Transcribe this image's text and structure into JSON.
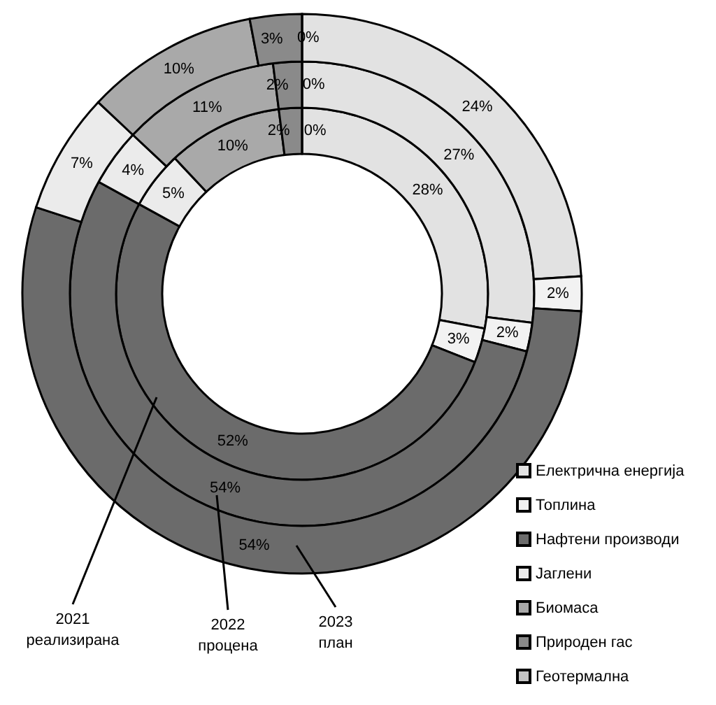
{
  "chart_data": {
    "type": "donut",
    "categories": [
      "Електрична енергија",
      "Топлина",
      "Нафтени производи",
      "Јаглени",
      "Биомаса",
      "Природен гас",
      "Геотермална"
    ],
    "colors": [
      "#e2e2e2",
      "#f2f2f2",
      "#6b6b6b",
      "#ebebeb",
      "#a9a9a9",
      "#8a8a8a",
      "#c4c4c4"
    ],
    "series": [
      {
        "name": "2021 реализирана",
        "values": [
          28,
          3,
          52,
          5,
          10,
          2,
          0
        ],
        "value_labels": [
          "28%",
          "3%",
          "52%",
          "5%",
          "10%",
          "2%",
          "0%"
        ]
      },
      {
        "name": "2022 процена",
        "values": [
          27,
          2,
          54,
          4,
          11,
          2,
          0
        ],
        "value_labels": [
          "27%",
          "2%",
          "54%",
          "4%",
          "11%",
          "2%",
          "0%"
        ]
      },
      {
        "name": "2023 план",
        "values": [
          24,
          2,
          54,
          7,
          10,
          3,
          0
        ],
        "value_labels": [
          "24%",
          "2%",
          "54%",
          "7%",
          "10%",
          "3%",
          "0%"
        ]
      }
    ],
    "legend": "bottom right"
  }
}
